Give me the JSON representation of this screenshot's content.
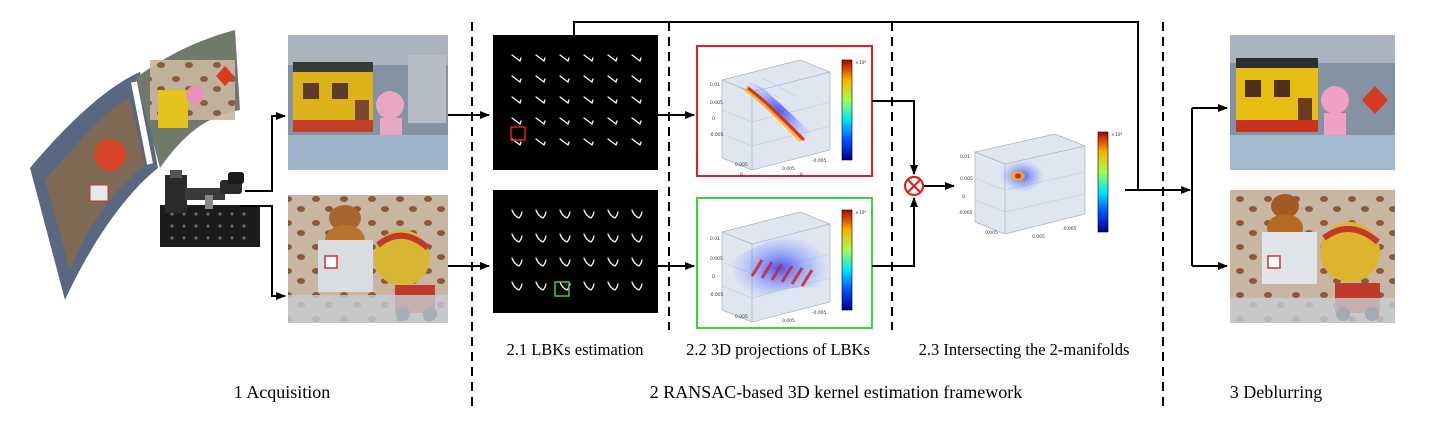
{
  "stages": {
    "acquisition": "1 Acquisition",
    "framework": "2 RANSAC-based 3D kernel estimation framework",
    "deblurring": "3 Deblurring"
  },
  "substages": {
    "lbk_estimation": "2.1 LBKs estimation",
    "projections": "2.2 3D projections of LBKs",
    "intersecting": "2.3 Intersecting the 2-manifolds"
  },
  "colors": {
    "top_branch": "#e02020",
    "bottom_branch": "#39d639",
    "intersect_marker": "#e02020"
  }
}
